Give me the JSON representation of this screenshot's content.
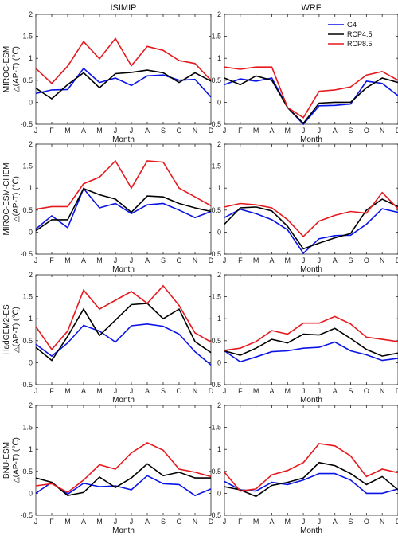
{
  "columns": [
    "ISIMIP",
    "WRF"
  ],
  "legend": [
    "G4",
    "RCP4.5",
    "RCP8.5"
  ],
  "series_colors": {
    "G4": "#0a14e6",
    "RCP4.5": "#000000",
    "RCP8.5": "#e6191e"
  },
  "chart_data": [
    {
      "type": "line",
      "panel": "MIROC-ESM / ISIMIP",
      "column": "ISIMIP",
      "row_label": "MIROC-ESM",
      "xlabel": "Month",
      "ylabel": "△(AP-T) (℃)",
      "categories": [
        "J",
        "F",
        "M",
        "A",
        "M",
        "J",
        "J",
        "A",
        "S",
        "O",
        "N",
        "D"
      ],
      "ylim": [
        -0.5,
        2
      ],
      "yticks": [
        -0.5,
        0,
        0.5,
        1,
        1.5,
        2
      ],
      "series": [
        {
          "name": "G4",
          "values": [
            0.2,
            0.28,
            0.29,
            0.77,
            0.45,
            0.55,
            0.38,
            0.6,
            0.62,
            0.5,
            0.52,
            0.12
          ]
        },
        {
          "name": "RCP4.5",
          "values": [
            0.32,
            0.08,
            0.4,
            0.67,
            0.33,
            0.65,
            0.68,
            0.73,
            0.67,
            0.45,
            0.67,
            0.48
          ]
        },
        {
          "name": "RCP8.5",
          "values": [
            0.77,
            0.43,
            0.82,
            1.38,
            0.99,
            1.45,
            0.83,
            1.27,
            1.18,
            0.95,
            0.88,
            0.5
          ]
        }
      ]
    },
    {
      "type": "line",
      "panel": "MIROC-ESM / WRF",
      "column": "WRF",
      "row_label": "MIROC-ESM",
      "xlabel": "Month",
      "ylabel": "",
      "categories": [
        "J",
        "F",
        "M",
        "A",
        "M",
        "J",
        "J",
        "A",
        "S",
        "O",
        "N",
        "D"
      ],
      "ylim": [
        -0.5,
        2
      ],
      "yticks": [
        -0.5,
        0,
        0.5,
        1,
        1.5,
        2
      ],
      "series": [
        {
          "name": "G4",
          "values": [
            0.4,
            0.53,
            0.48,
            0.55,
            -0.12,
            -0.5,
            -0.08,
            -0.07,
            -0.04,
            0.48,
            0.43,
            0.15
          ]
        },
        {
          "name": "RCP4.5",
          "values": [
            0.55,
            0.4,
            0.6,
            0.5,
            -0.12,
            -0.48,
            -0.02,
            0.0,
            0.0,
            0.33,
            0.55,
            0.45
          ]
        },
        {
          "name": "RCP8.5",
          "values": [
            0.8,
            0.75,
            0.8,
            0.8,
            -0.12,
            -0.35,
            0.25,
            0.28,
            0.35,
            0.62,
            0.7,
            0.5
          ]
        }
      ]
    },
    {
      "type": "line",
      "panel": "MIROC-ESM-CHEM / ISIMIP",
      "column": "ISIMIP",
      "row_label": "MIROC-ESM-CHEM",
      "xlabel": "Month",
      "ylabel": "△(AP-T) (℃)",
      "categories": [
        "J",
        "F",
        "M",
        "A",
        "M",
        "J",
        "J",
        "A",
        "S",
        "O",
        "N",
        "D"
      ],
      "ylim": [
        -0.5,
        2
      ],
      "yticks": [
        -0.5,
        0,
        0.5,
        1,
        1.5,
        2
      ],
      "series": [
        {
          "name": "G4",
          "values": [
            0.07,
            0.37,
            0.1,
            0.99,
            0.55,
            0.65,
            0.42,
            0.62,
            0.65,
            0.5,
            0.33,
            0.47
          ]
        },
        {
          "name": "RCP4.5",
          "values": [
            0.03,
            0.28,
            0.28,
            0.99,
            0.85,
            0.75,
            0.45,
            0.82,
            0.8,
            0.65,
            0.55,
            0.47
          ]
        },
        {
          "name": "RCP8.5",
          "values": [
            0.52,
            0.58,
            0.58,
            1.1,
            1.25,
            1.62,
            1.0,
            1.62,
            1.59,
            1.0,
            0.8,
            0.6
          ]
        }
      ]
    },
    {
      "type": "line",
      "panel": "MIROC-ESM-CHEM / WRF",
      "column": "WRF",
      "row_label": "MIROC-ESM-CHEM",
      "xlabel": "Month",
      "ylabel": "",
      "categories": [
        "J",
        "F",
        "M",
        "A",
        "M",
        "J",
        "J",
        "A",
        "S",
        "O",
        "N",
        "D"
      ],
      "ylim": [
        -0.5,
        2
      ],
      "yticks": [
        -0.5,
        0,
        0.5,
        1,
        1.5,
        2
      ],
      "series": [
        {
          "name": "G4",
          "values": [
            0.33,
            0.52,
            0.42,
            0.28,
            0.05,
            -0.48,
            -0.15,
            -0.08,
            -0.07,
            0.18,
            0.53,
            0.45
          ]
        },
        {
          "name": "RCP4.5",
          "values": [
            0.18,
            0.55,
            0.57,
            0.48,
            0.13,
            -0.38,
            -0.25,
            -0.13,
            -0.03,
            0.5,
            0.75,
            0.58
          ]
        },
        {
          "name": "RCP8.5",
          "values": [
            0.57,
            0.65,
            0.62,
            0.55,
            0.28,
            -0.1,
            0.25,
            0.38,
            0.47,
            0.43,
            0.9,
            0.53
          ]
        }
      ]
    },
    {
      "type": "line",
      "panel": "HadGEM2-ES / ISIMIP",
      "column": "ISIMIP",
      "row_label": "HadGEM2-ES",
      "xlabel": "Month",
      "ylabel": "△(AP-T) (℃)",
      "categories": [
        "J",
        "F",
        "M",
        "A",
        "M",
        "J",
        "J",
        "A",
        "S",
        "O",
        "N",
        "D"
      ],
      "ylim": [
        -0.5,
        2
      ],
      "yticks": [
        -0.5,
        0,
        0.5,
        1,
        1.5,
        2
      ],
      "series": [
        {
          "name": "G4",
          "values": [
            0.42,
            0.15,
            0.45,
            0.85,
            0.72,
            0.47,
            0.84,
            0.88,
            0.83,
            0.65,
            0.25,
            -0.05
          ]
        },
        {
          "name": "RCP4.5",
          "values": [
            0.35,
            0.05,
            0.6,
            1.22,
            0.62,
            0.97,
            1.32,
            1.35,
            1.0,
            1.22,
            0.48,
            0.23
          ]
        },
        {
          "name": "RCP8.5",
          "values": [
            0.82,
            0.3,
            0.72,
            1.65,
            1.22,
            1.42,
            1.62,
            1.35,
            1.75,
            1.3,
            0.68,
            0.47
          ]
        }
      ]
    },
    {
      "type": "line",
      "panel": "HadGEM2-ES / WRF",
      "column": "WRF",
      "row_label": "HadGEM2-ES",
      "xlabel": "Month",
      "ylabel": "",
      "categories": [
        "J",
        "F",
        "M",
        "A",
        "M",
        "J",
        "J",
        "A",
        "S",
        "O",
        "N",
        "D"
      ],
      "ylim": [
        -0.5,
        2
      ],
      "yticks": [
        -0.5,
        0,
        0.5,
        1,
        1.5,
        2
      ],
      "series": [
        {
          "name": "G4",
          "values": [
            0.27,
            0.02,
            0.13,
            0.25,
            0.27,
            0.33,
            0.35,
            0.47,
            0.27,
            0.18,
            0.05,
            0.1
          ]
        },
        {
          "name": "RCP4.5",
          "values": [
            0.27,
            0.17,
            0.33,
            0.53,
            0.45,
            0.65,
            0.63,
            0.78,
            0.55,
            0.3,
            0.15,
            0.22
          ]
        },
        {
          "name": "RCP8.5",
          "values": [
            0.28,
            0.33,
            0.48,
            0.73,
            0.65,
            0.9,
            0.9,
            1.05,
            0.88,
            0.58,
            0.53,
            0.48
          ]
        }
      ]
    },
    {
      "type": "line",
      "panel": "BNU-ESM / ISIMIP",
      "column": "ISIMIP",
      "row_label": "BNU-ESM",
      "xlabel": "Month",
      "ylabel": "△(AP-T) (℃)",
      "categories": [
        "J",
        "F",
        "M",
        "A",
        "M",
        "J",
        "J",
        "A",
        "S",
        "O",
        "N",
        "D"
      ],
      "ylim": [
        -0.5,
        2
      ],
      "yticks": [
        -0.5,
        0,
        0.5,
        1,
        1.5,
        2
      ],
      "series": [
        {
          "name": "G4",
          "values": [
            0.0,
            0.25,
            -0.02,
            0.23,
            0.15,
            0.17,
            0.08,
            0.4,
            0.22,
            0.2,
            -0.05,
            0.1
          ]
        },
        {
          "name": "RCP4.5",
          "values": [
            0.35,
            0.25,
            -0.05,
            0.02,
            0.37,
            0.13,
            0.35,
            0.67,
            0.4,
            0.48,
            0.35,
            0.35
          ]
        },
        {
          "name": "RCP8.5",
          "values": [
            0.17,
            0.22,
            0.02,
            0.3,
            0.65,
            0.55,
            0.92,
            1.15,
            0.98,
            0.55,
            0.48,
            0.38
          ]
        }
      ]
    },
    {
      "type": "line",
      "panel": "BNU-ESM / WRF",
      "column": "WRF",
      "row_label": "BNU-ESM",
      "xlabel": "Month",
      "ylabel": "",
      "categories": [
        "J",
        "F",
        "M",
        "A",
        "M",
        "J",
        "J",
        "A",
        "S",
        "O",
        "N",
        "D"
      ],
      "ylim": [
        -0.5,
        2
      ],
      "yticks": [
        -0.5,
        0,
        0.5,
        1,
        1.5,
        2
      ],
      "series": [
        {
          "name": "G4",
          "values": [
            0.27,
            0.08,
            0.05,
            0.25,
            0.2,
            0.3,
            0.45,
            0.45,
            0.3,
            0.0,
            0.0,
            0.1
          ]
        },
        {
          "name": "RCP4.5",
          "values": [
            0.15,
            0.08,
            -0.07,
            0.18,
            0.25,
            0.35,
            0.7,
            0.63,
            0.45,
            0.2,
            0.38,
            0.08
          ]
        },
        {
          "name": "RCP8.5",
          "values": [
            0.48,
            0.05,
            0.1,
            0.42,
            0.52,
            0.7,
            1.13,
            1.08,
            0.85,
            0.38,
            0.55,
            0.47
          ]
        }
      ]
    }
  ]
}
